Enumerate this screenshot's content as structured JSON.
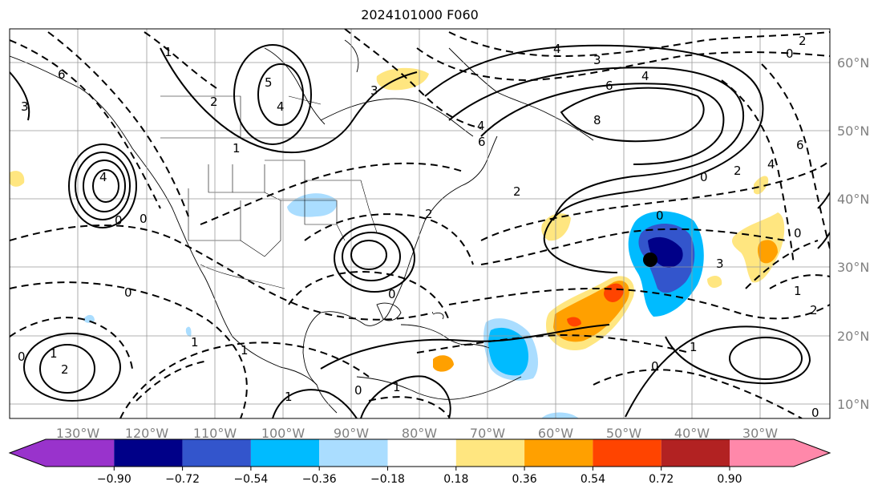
{
  "title": "2024101000 F060",
  "longitude_labels": [
    "130°W",
    "120°W",
    "110°W",
    "100°W",
    "90°W",
    "80°W",
    "70°W",
    "60°W",
    "50°W",
    "40°W",
    "30°W"
  ],
  "latitude_labels": [
    "60°N",
    "50°N",
    "40°N",
    "30°N",
    "20°N",
    "10°N"
  ],
  "colorbar": {
    "colors": [
      "#9933cc",
      "#000088",
      "#3355cc",
      "#00bbff",
      "#aaddff",
      "#ffffff",
      "#ffe680",
      "#ffa000",
      "#ff4400",
      "#b22222",
      "#ff88aa"
    ],
    "tick_labels": [
      "−0.90",
      "−0.72",
      "−0.54",
      "−0.36",
      "−0.18",
      "0.18",
      "0.36",
      "0.54",
      "0.72",
      "0.90"
    ]
  },
  "contour_labels": [
    "0",
    "1",
    "2",
    "3",
    "4",
    "5",
    "6",
    "8"
  ],
  "storm_marker": "black-dot"
}
